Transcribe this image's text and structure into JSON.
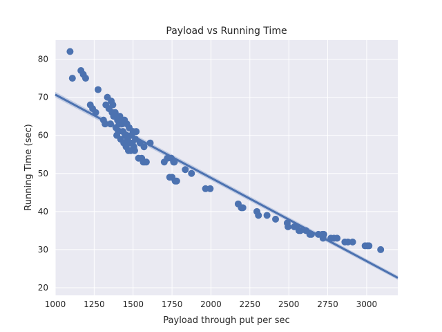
{
  "chart_data": {
    "type": "scatter",
    "title": "Payload vs Running Time",
    "xlabel": "Payload through put per sec",
    "ylabel": "Running Time (sec)",
    "xlim": [
      1000,
      3200
    ],
    "ylim": [
      18,
      85
    ],
    "xticks": [
      1000,
      1250,
      1500,
      1750,
      2000,
      2250,
      2500,
      2750,
      3000
    ],
    "yticks": [
      20,
      30,
      40,
      50,
      60,
      70,
      80
    ],
    "grid": true,
    "point_color": "#4c72b0",
    "line_color": "#4c72b0",
    "ci_color": "#a5b6d9",
    "background_color": "#eaeaf2",
    "regression": {
      "x": [
        1000,
        3200
      ],
      "y": [
        70.7,
        22.6
      ]
    },
    "points": [
      [
        1095,
        82
      ],
      [
        1110,
        75
      ],
      [
        1165,
        77
      ],
      [
        1180,
        76
      ],
      [
        1195,
        75
      ],
      [
        1225,
        68
      ],
      [
        1240,
        67
      ],
      [
        1260,
        66
      ],
      [
        1275,
        72
      ],
      [
        1310,
        64
      ],
      [
        1320,
        63
      ],
      [
        1325,
        68
      ],
      [
        1335,
        70
      ],
      [
        1345,
        67
      ],
      [
        1355,
        63
      ],
      [
        1360,
        69
      ],
      [
        1365,
        66
      ],
      [
        1370,
        68
      ],
      [
        1375,
        65
      ],
      [
        1385,
        66
      ],
      [
        1390,
        62
      ],
      [
        1395,
        60
      ],
      [
        1400,
        64
      ],
      [
        1405,
        61
      ],
      [
        1410,
        63
      ],
      [
        1415,
        65
      ],
      [
        1420,
        59
      ],
      [
        1425,
        64
      ],
      [
        1430,
        63
      ],
      [
        1435,
        61
      ],
      [
        1440,
        58
      ],
      [
        1445,
        64
      ],
      [
        1450,
        60
      ],
      [
        1455,
        57
      ],
      [
        1460,
        63
      ],
      [
        1465,
        59
      ],
      [
        1470,
        56
      ],
      [
        1475,
        62
      ],
      [
        1480,
        58
      ],
      [
        1485,
        56
      ],
      [
        1490,
        60
      ],
      [
        1495,
        58
      ],
      [
        1500,
        61
      ],
      [
        1505,
        57
      ],
      [
        1510,
        56
      ],
      [
        1515,
        59
      ],
      [
        1520,
        61
      ],
      [
        1535,
        54
      ],
      [
        1545,
        58
      ],
      [
        1555,
        54
      ],
      [
        1565,
        53
      ],
      [
        1570,
        57
      ],
      [
        1575,
        53
      ],
      [
        1585,
        53
      ],
      [
        1610,
        58
      ],
      [
        1700,
        53
      ],
      [
        1720,
        54
      ],
      [
        1735,
        49
      ],
      [
        1745,
        54
      ],
      [
        1750,
        49
      ],
      [
        1760,
        53
      ],
      [
        1765,
        53
      ],
      [
        1770,
        48
      ],
      [
        1780,
        48
      ],
      [
        1835,
        51
      ],
      [
        1875,
        50
      ],
      [
        1965,
        46
      ],
      [
        1995,
        46
      ],
      [
        2175,
        42
      ],
      [
        2195,
        41
      ],
      [
        2205,
        41
      ],
      [
        2295,
        40
      ],
      [
        2305,
        39
      ],
      [
        2360,
        39
      ],
      [
        2415,
        38
      ],
      [
        2490,
        37
      ],
      [
        2495,
        36
      ],
      [
        2535,
        36
      ],
      [
        2550,
        36
      ],
      [
        2565,
        35
      ],
      [
        2575,
        35
      ],
      [
        2610,
        35
      ],
      [
        2635,
        34
      ],
      [
        2645,
        34
      ],
      [
        2690,
        34
      ],
      [
        2715,
        34
      ],
      [
        2720,
        33
      ],
      [
        2725,
        34
      ],
      [
        2770,
        33
      ],
      [
        2790,
        33
      ],
      [
        2810,
        33
      ],
      [
        2860,
        32
      ],
      [
        2880,
        32
      ],
      [
        2910,
        32
      ],
      [
        2990,
        31
      ],
      [
        3005,
        31
      ],
      [
        3015,
        31
      ],
      [
        3090,
        30
      ]
    ]
  }
}
